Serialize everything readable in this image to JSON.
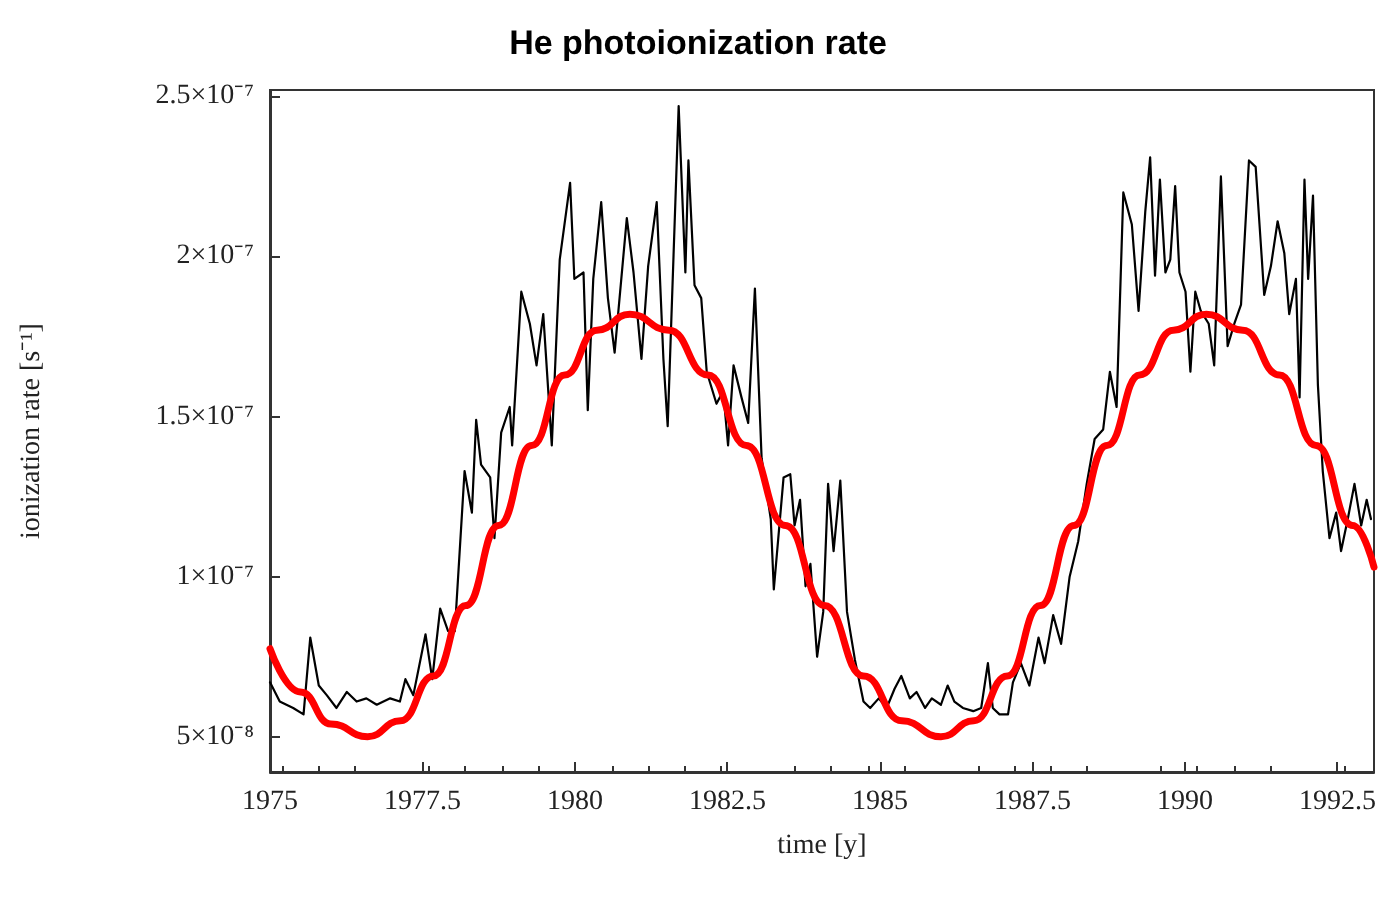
{
  "chart_data": {
    "type": "line",
    "title": "He photoionization rate",
    "xlabel": "time [y]",
    "ylabel": "ionization rate [s⁻¹]",
    "xlim": [
      1975,
      1993.1
    ],
    "xticks": [
      1975,
      1977.5,
      1980,
      1982.5,
      1985,
      1987.5,
      1990,
      1992.5
    ],
    "ylim": [
      3.9e-08,
      2.52e-07
    ],
    "yticks": [
      {
        "value": 5e-08,
        "label": "5×10⁻⁸"
      },
      {
        "value": 1e-07,
        "label": "1×10⁻⁷"
      },
      {
        "value": 1.5e-07,
        "label": "1.5×10⁻⁷"
      },
      {
        "value": 2e-07,
        "label": "2×10⁻⁷"
      },
      {
        "value": 2.5e-07,
        "label": "2.5×10⁻⁷"
      }
    ],
    "grid": false,
    "marker": "none",
    "line_style": "solid",
    "series": [
      {
        "color": "#000000",
        "x": [
          1975.0,
          1975.16,
          1975.38,
          1975.55,
          1975.66,
          1975.8,
          1975.93,
          1976.09,
          1976.26,
          1976.42,
          1976.58,
          1976.75,
          1976.97,
          1977.13,
          1977.22,
          1977.35,
          1977.55,
          1977.66,
          1977.79,
          1977.92,
          1978.03,
          1978.19,
          1978.31,
          1978.38,
          1978.46,
          1978.61,
          1978.68,
          1978.79,
          1978.93,
          1978.97,
          1979.12,
          1979.26,
          1979.37,
          1979.48,
          1979.62,
          1979.75,
          1979.92,
          1979.99,
          1980.14,
          1980.21,
          1980.3,
          1980.43,
          1980.54,
          1980.65,
          1980.85,
          1980.96,
          1981.09,
          1981.2,
          1981.34,
          1981.45,
          1981.52,
          1981.7,
          1981.81,
          1981.86,
          1981.96,
          1982.07,
          1982.16,
          1982.32,
          1982.43,
          1982.51,
          1982.6,
          1982.73,
          1982.84,
          1982.95,
          1983.06,
          1983.21,
          1983.26,
          1983.42,
          1983.53,
          1983.6,
          1983.69,
          1983.78,
          1983.86,
          1983.97,
          1984.07,
          1984.15,
          1984.24,
          1984.35,
          1984.46,
          1984.59,
          1984.73,
          1984.84,
          1984.98,
          1985.11,
          1985.24,
          1985.35,
          1985.49,
          1985.6,
          1985.74,
          1985.85,
          1986.0,
          1986.11,
          1986.22,
          1986.36,
          1986.53,
          1986.66,
          1986.77,
          1986.85,
          1986.96,
          1987.1,
          1987.18,
          1987.31,
          1987.45,
          1987.6,
          1987.7,
          1987.84,
          1987.97,
          1988.11,
          1988.25,
          1988.39,
          1988.52,
          1988.66,
          1988.77,
          1988.88,
          1988.99,
          1989.13,
          1989.24,
          1989.35,
          1989.43,
          1989.51,
          1989.59,
          1989.68,
          1989.76,
          1989.84,
          1989.91,
          1990.01,
          1990.09,
          1990.17,
          1990.26,
          1990.39,
          1990.48,
          1990.59,
          1990.7,
          1990.81,
          1990.92,
          1991.05,
          1991.16,
          1991.3,
          1991.41,
          1991.52,
          1991.63,
          1991.71,
          1991.82,
          1991.88,
          1991.96,
          1992.02,
          1992.1,
          1992.18,
          1992.26,
          1992.37,
          1992.48,
          1992.56,
          1992.67,
          1992.78,
          1992.89,
          1992.98,
          1993.05
        ],
        "values": [
          6.7e-08,
          6.1e-08,
          5.9e-08,
          5.7e-08,
          8.1e-08,
          6.6e-08,
          6.3e-08,
          5.9e-08,
          6.4e-08,
          6.1e-08,
          6.2e-08,
          6e-08,
          6.2e-08,
          6.1e-08,
          6.8e-08,
          6.3e-08,
          8.2e-08,
          6.8e-08,
          9e-08,
          8.3e-08,
          8.3e-08,
          1.33e-07,
          1.2e-07,
          1.49e-07,
          1.35e-07,
          1.31e-07,
          1.12e-07,
          1.45e-07,
          1.53e-07,
          1.41e-07,
          1.89e-07,
          1.79e-07,
          1.66e-07,
          1.82e-07,
          1.41e-07,
          1.99e-07,
          2.23e-07,
          1.93e-07,
          1.95e-07,
          1.52e-07,
          1.93e-07,
          2.17e-07,
          1.87e-07,
          1.7e-07,
          2.12e-07,
          1.95e-07,
          1.68e-07,
          1.97e-07,
          2.17e-07,
          1.68e-07,
          1.47e-07,
          2.47e-07,
          1.95e-07,
          2.3e-07,
          1.91e-07,
          1.87e-07,
          1.64e-07,
          1.54e-07,
          1.58e-07,
          1.41e-07,
          1.66e-07,
          1.56e-07,
          1.48e-07,
          1.9e-07,
          1.37e-07,
          1.18e-07,
          9.6e-08,
          1.31e-07,
          1.32e-07,
          1.16e-07,
          1.24e-07,
          9.7e-08,
          1.04e-07,
          7.5e-08,
          8.9e-08,
          1.29e-07,
          1.08e-07,
          1.3e-07,
          8.9e-08,
          7.4e-08,
          6.1e-08,
          5.9e-08,
          6.2e-08,
          5.9e-08,
          6.5e-08,
          6.9e-08,
          6.2e-08,
          6.4e-08,
          5.9e-08,
          6.2e-08,
          6e-08,
          6.6e-08,
          6.1e-08,
          5.9e-08,
          5.8e-08,
          5.9e-08,
          7.3e-08,
          5.9e-08,
          5.7e-08,
          5.7e-08,
          6.7e-08,
          7.3e-08,
          6.6e-08,
          8.1e-08,
          7.3e-08,
          8.8e-08,
          7.9e-08,
          1e-07,
          1.11e-07,
          1.29e-07,
          1.43e-07,
          1.46e-07,
          1.64e-07,
          1.53e-07,
          2.2e-07,
          2.1e-07,
          1.83e-07,
          2.14e-07,
          2.31e-07,
          1.94e-07,
          2.24e-07,
          1.95e-07,
          1.99e-07,
          2.22e-07,
          1.95e-07,
          1.89e-07,
          1.64e-07,
          1.89e-07,
          1.83e-07,
          1.79e-07,
          1.66e-07,
          2.25e-07,
          1.72e-07,
          1.79e-07,
          1.85e-07,
          2.3e-07,
          2.28e-07,
          1.88e-07,
          1.97e-07,
          2.11e-07,
          2.01e-07,
          1.82e-07,
          1.93e-07,
          1.56e-07,
          2.24e-07,
          1.93e-07,
          2.19e-07,
          1.6e-07,
          1.33e-07,
          1.12e-07,
          1.2e-07,
          1.08e-07,
          1.18e-07,
          1.29e-07,
          1.16e-07,
          1.24e-07,
          1.18e-07
        ]
      },
      {
        "color": "#ff0000",
        "x": [
          1975,
          1975.5,
          1976,
          1976.6,
          1977.14,
          1977.68,
          1978.21,
          1978.75,
          1979.29,
          1979.83,
          1980.36,
          1980.9,
          1981.54,
          1982.18,
          1982.81,
          1983.45,
          1984.09,
          1984.73,
          1985.36,
          1986.0,
          1986.54,
          1987.09,
          1987.63,
          1988.18,
          1988.72,
          1989.26,
          1989.81,
          1990.35,
          1990.95,
          1991.55,
          1992.15,
          1992.75,
          1993.1
        ],
        "values": [
          7.75e-08,
          6.4e-08,
          5.4e-08,
          5e-08,
          5.5e-08,
          6.9e-08,
          9.1e-08,
          1.16e-07,
          1.41e-07,
          1.63e-07,
          1.77e-07,
          1.82e-07,
          1.77e-07,
          1.63e-07,
          1.41e-07,
          1.16e-07,
          9.1e-08,
          6.9e-08,
          5.5e-08,
          5e-08,
          5.5e-08,
          6.9e-08,
          9.1e-08,
          1.16e-07,
          1.41e-07,
          1.63e-07,
          1.77e-07,
          1.82e-07,
          1.77e-07,
          1.63e-07,
          1.41e-07,
          1.16e-07,
          1.03e-07
        ]
      }
    ]
  }
}
